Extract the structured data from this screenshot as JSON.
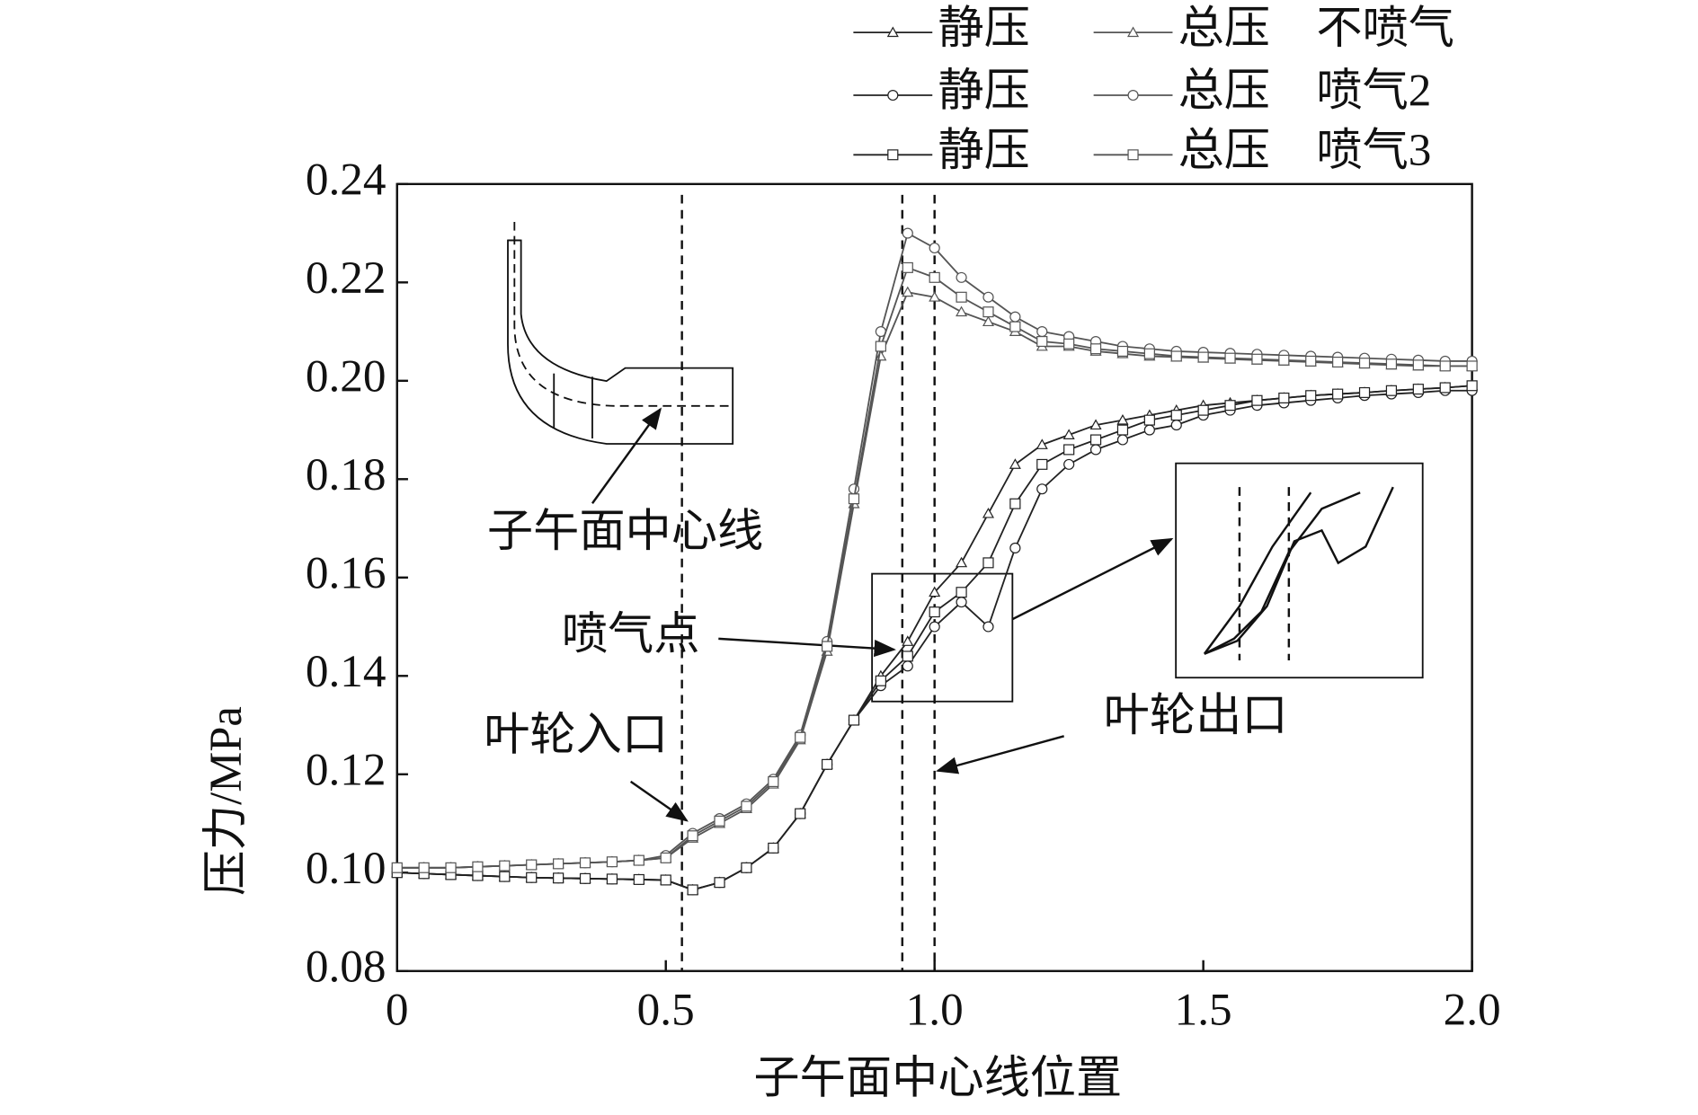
{
  "chart_data": {
    "type": "line",
    "xlabel": "子午面中心线位置",
    "ylabel": "压力/MPa",
    "xlim": [
      0,
      2
    ],
    "ylim": [
      0.08,
      0.24
    ],
    "xticks": [
      0,
      0.5,
      {
        "value": 1,
        "label": "1.0"
      },
      1.5,
      {
        "value": 2,
        "label": "2.0"
      }
    ],
    "yticks": [
      0.08,
      {
        "value": 0.1,
        "label": "0.10"
      },
      0.12,
      0.14,
      0.16,
      0.18,
      {
        "value": 0.2,
        "label": "0.20"
      },
      0.22,
      0.24
    ],
    "legend_rows": [
      "不喷气",
      "喷气2",
      "喷气3"
    ],
    "vlines": [
      0.53,
      0.94,
      1.0
    ],
    "annotations": [
      "子午面中心线",
      "喷气点",
      "叶轮入口",
      "叶轮出口"
    ],
    "x": [
      0,
      0.05,
      0.1,
      0.15,
      0.2,
      0.25,
      0.3,
      0.35,
      0.4,
      0.45,
      0.5,
      0.55,
      0.6,
      0.65,
      0.7,
      0.75,
      0.8,
      0.85,
      0.9,
      0.95,
      1,
      1.05,
      1.1,
      1.15,
      1.2,
      1.25,
      1.3,
      1.35,
      1.4,
      1.45,
      1.5,
      1.55,
      1.6,
      1.65,
      1.7,
      1.75,
      1.8,
      1.85,
      1.9,
      1.95,
      2
    ],
    "series": [
      {
        "name": "静压",
        "marker": "triangle",
        "color": "#222222",
        "values": [
          0.1,
          0.0998,
          0.0996,
          0.0994,
          0.0992,
          0.099,
          0.0989,
          0.0988,
          0.0987,
          0.0986,
          0.0985,
          0.0965,
          0.098,
          0.101,
          0.105,
          0.112,
          0.122,
          0.131,
          0.14,
          0.147,
          0.157,
          0.163,
          0.173,
          0.183,
          0.187,
          0.189,
          0.191,
          0.192,
          0.193,
          0.194,
          0.195,
          0.1955,
          0.196,
          0.1965,
          0.197,
          0.1973,
          0.1976,
          0.198,
          0.1983,
          0.1986,
          0.199
        ]
      },
      {
        "name": "总压",
        "marker": "triangle",
        "color": "#555555",
        "values": [
          0.101,
          0.101,
          0.101,
          0.1012,
          0.1014,
          0.1016,
          0.1018,
          0.102,
          0.1022,
          0.1025,
          0.103,
          0.107,
          0.11,
          0.113,
          0.118,
          0.127,
          0.145,
          0.175,
          0.205,
          0.218,
          0.217,
          0.214,
          0.212,
          0.21,
          0.207,
          0.207,
          0.206,
          0.2055,
          0.205,
          0.2048,
          0.2046,
          0.2044,
          0.2042,
          0.204,
          0.2038,
          0.2036,
          0.2034,
          0.2032,
          0.203,
          0.203,
          0.203
        ]
      },
      {
        "name": "静压",
        "marker": "circle",
        "color": "#222222",
        "values": [
          0.1,
          0.0998,
          0.0996,
          0.0994,
          0.0992,
          0.099,
          0.0989,
          0.0988,
          0.0987,
          0.0986,
          0.0985,
          0.0965,
          0.098,
          0.101,
          0.105,
          0.112,
          0.122,
          0.131,
          0.138,
          0.142,
          0.15,
          0.155,
          0.15,
          0.166,
          0.178,
          0.183,
          0.186,
          0.188,
          0.19,
          0.191,
          0.193,
          0.194,
          0.195,
          0.1955,
          0.196,
          0.1965,
          0.197,
          0.1973,
          0.1976,
          0.198,
          0.198
        ]
      },
      {
        "name": "总压",
        "marker": "circle",
        "color": "#555555",
        "values": [
          0.101,
          0.101,
          0.101,
          0.1012,
          0.1014,
          0.1016,
          0.1018,
          0.102,
          0.1022,
          0.1025,
          0.1035,
          0.108,
          0.111,
          0.114,
          0.119,
          0.128,
          0.147,
          0.178,
          0.21,
          0.23,
          0.227,
          0.221,
          0.217,
          0.213,
          0.21,
          0.209,
          0.208,
          0.207,
          0.2065,
          0.206,
          0.2058,
          0.2056,
          0.2054,
          0.2052,
          0.205,
          0.2048,
          0.2046,
          0.2044,
          0.2042,
          0.204,
          0.204
        ]
      },
      {
        "name": "静压",
        "marker": "square",
        "color": "#222222",
        "values": [
          0.1,
          0.0998,
          0.0996,
          0.0994,
          0.0992,
          0.099,
          0.0989,
          0.0988,
          0.0987,
          0.0986,
          0.0985,
          0.0965,
          0.098,
          0.101,
          0.105,
          0.112,
          0.122,
          0.131,
          0.139,
          0.144,
          0.153,
          0.157,
          0.163,
          0.175,
          0.183,
          0.186,
          0.188,
          0.19,
          0.192,
          0.193,
          0.194,
          0.195,
          0.196,
          0.1965,
          0.197,
          0.1973,
          0.1976,
          0.198,
          0.1983,
          0.1986,
          0.199
        ]
      },
      {
        "name": "总压",
        "marker": "square",
        "color": "#555555",
        "values": [
          0.101,
          0.101,
          0.101,
          0.1012,
          0.1014,
          0.1016,
          0.1018,
          0.102,
          0.1022,
          0.1025,
          0.103,
          0.1075,
          0.1105,
          0.1135,
          0.1185,
          0.1275,
          0.146,
          0.176,
          0.207,
          0.223,
          0.221,
          0.217,
          0.214,
          0.211,
          0.208,
          0.2075,
          0.2065,
          0.206,
          0.2055,
          0.205,
          0.2048,
          0.2046,
          0.2044,
          0.2042,
          0.204,
          0.2038,
          0.2036,
          0.2034,
          0.2032,
          0.203,
          0.203
        ]
      }
    ]
  }
}
